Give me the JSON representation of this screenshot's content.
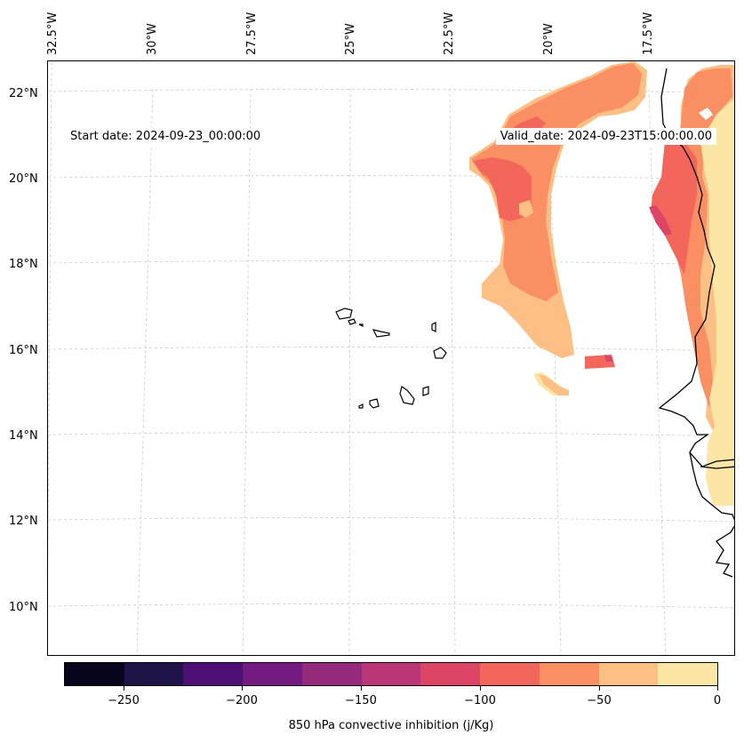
{
  "map": {
    "start_date": "Start date: 2024-09-23_00:00:00",
    "valid_date": "Valid_date: 2024-09-23T15:00:00.00",
    "lon_labels": [
      "32.5°W",
      "30°W",
      "27.5°W",
      "25°W",
      "22.5°W",
      "20°W",
      "17.5°W"
    ],
    "lat_labels": [
      "22°N",
      "20°N",
      "18°N",
      "16°N",
      "14°N",
      "12°N",
      "10°N"
    ]
  },
  "colorbar": {
    "label": "850 hPa convective inhibition (j/Kg)",
    "ticks": [
      "−250",
      "−200",
      "−150",
      "−100",
      "−50",
      "0"
    ],
    "colors": [
      "#06051b",
      "#1f1347",
      "#4e0f75",
      "#731b80",
      "#952a7d",
      "#ba3677",
      "#dc4565",
      "#f2665c",
      "#fa8f63",
      "#fdbf83",
      "#fce6a5"
    ]
  },
  "legend_colors": {
    "light": "#fce6a5",
    "peach": "#fdbf83",
    "orange": "#fa8f63",
    "red": "#f2665c",
    "magenta": "#dc4565"
  }
}
